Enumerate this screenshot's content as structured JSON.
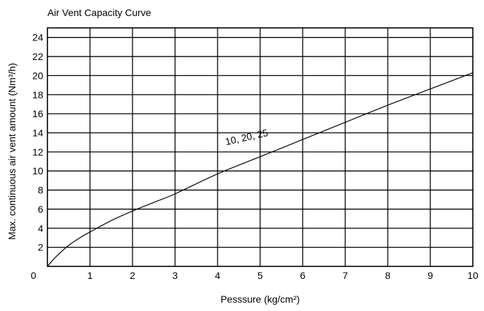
{
  "chart_data": {
    "type": "line",
    "title": "Air Vent Capacity Curve",
    "xlabel": "Pesssure (kg/cm²)",
    "ylabel": "Max. continuous air vent amount (Nm³/h)",
    "xlim": [
      0,
      10
    ],
    "ylim": [
      0,
      25
    ],
    "xticks": [
      "0",
      "1",
      "2",
      "3",
      "4",
      "5",
      "6",
      "7",
      "8",
      "9",
      "10"
    ],
    "yticks": [
      "2",
      "4",
      "6",
      "8",
      "10",
      "12",
      "14",
      "16",
      "18",
      "20",
      "22",
      "24"
    ],
    "grid": true,
    "legend": "none",
    "series": [
      {
        "name": "10, 20, 25",
        "x": [
          0,
          0.2,
          0.5,
          0.8,
          1,
          1.5,
          2,
          2.5,
          3,
          4,
          5,
          6,
          7,
          8,
          9,
          10
        ],
        "y": [
          0,
          1.0,
          2.2,
          3.1,
          3.6,
          4.8,
          5.8,
          6.7,
          7.6,
          9.7,
          11.5,
          13.3,
          15.1,
          16.9,
          18.6,
          20.3
        ]
      }
    ],
    "annotation": {
      "text": "10, 20, 25",
      "x": 4.7,
      "y": 13.2
    }
  }
}
